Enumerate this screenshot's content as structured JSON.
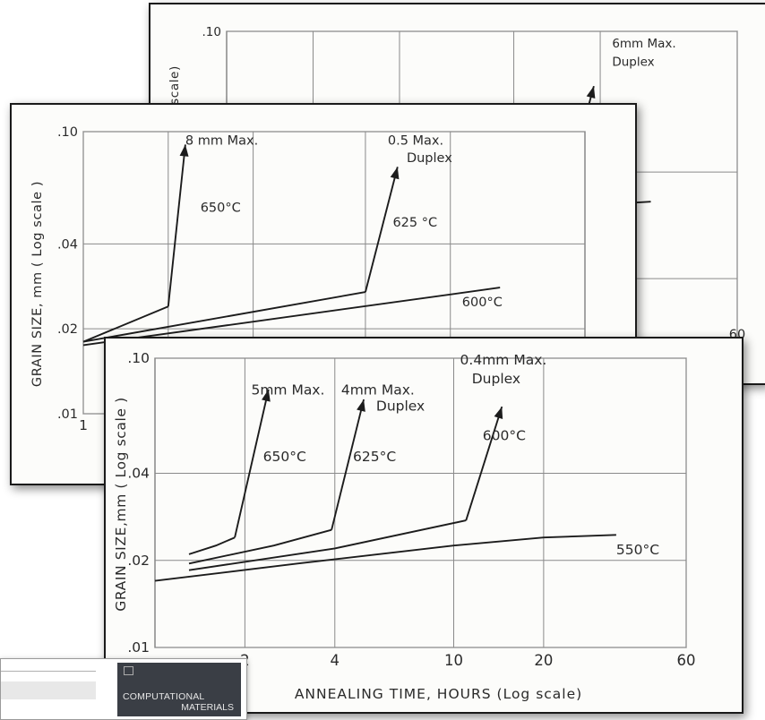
{
  "chart_data": [
    {
      "type": "line",
      "panel": "back (partially hidden)",
      "title": "",
      "ylabel": "scale)",
      "xlabel": "",
      "y_scale": "log",
      "ylim": [
        0.01,
        0.1
      ],
      "xlim": [
        1,
        60
      ],
      "x_scale": "log",
      "ytick_labels": [
        ".10"
      ],
      "xtick_labels": [
        "60"
      ],
      "annotations": [
        {
          "text": "6mm Max.",
          "x": 22,
          "y": 0.09
        },
        {
          "text": "Duplex",
          "x": 22,
          "y": 0.08
        }
      ],
      "series": [
        {
          "x": [
            1,
            30
          ],
          "y": [
            0.028,
            0.033
          ]
        }
      ],
      "arrows": [
        {
          "from": [
            17,
            0.05
          ],
          "to": [
            19,
            0.07
          ]
        }
      ]
    },
    {
      "type": "line",
      "panel": "middle",
      "title": "",
      "ylabel": "GRAIN SIZE, mm ( Log scale )",
      "xlabel": "",
      "y_scale": "log",
      "ylim": [
        0.01,
        0.1
      ],
      "x_scale": "log",
      "xlim": [
        1,
        60
      ],
      "ytick_labels": [
        ".10",
        ".04",
        ".02",
        ".01"
      ],
      "xtick_labels": [
        "1"
      ],
      "annotations": [
        {
          "text": "8 mm Max.",
          "x": 2.3,
          "y": 0.09
        },
        {
          "text": "650°C",
          "x": 2.6,
          "y": 0.052
        },
        {
          "text": "0.5 Max.",
          "x": 12,
          "y": 0.09
        },
        {
          "text": "Duplex",
          "x": 14,
          "y": 0.078
        },
        {
          "text": "625 °C",
          "x": 12.5,
          "y": 0.046
        },
        {
          "text": "600°C",
          "x": 22,
          "y": 0.024
        }
      ],
      "series": [
        {
          "name": "650°C",
          "x": [
            1,
            2
          ],
          "y": [
            0.018,
            0.024
          ]
        },
        {
          "name": "625°C",
          "x": [
            1,
            10
          ],
          "y": [
            0.018,
            0.027
          ]
        },
        {
          "name": "600°C",
          "x": [
            1,
            30
          ],
          "y": [
            0.0175,
            0.028
          ]
        }
      ],
      "arrows": [
        {
          "from": [
            2,
            0.024
          ],
          "to": [
            2.3,
            0.09
          ]
        },
        {
          "from": [
            10,
            0.027
          ],
          "to": [
            13,
            0.075
          ]
        }
      ]
    },
    {
      "type": "line",
      "panel": "front",
      "title": "",
      "xlabel": "ANNEALING TIME, HOURS (Log scale)",
      "ylabel": "GRAIN SIZE,mm ( Log scale )",
      "x_scale": "log",
      "y_scale": "log",
      "xlim": [
        1,
        60
      ],
      "ylim": [
        0.01,
        0.1
      ],
      "xticks": [
        2,
        4,
        10,
        20,
        60
      ],
      "xtick_labels": [
        "2",
        "4",
        "10",
        "20",
        "60"
      ],
      "yticks": [
        0.1,
        0.04,
        0.02,
        0.01
      ],
      "ytick_labels": [
        ".10",
        ".04",
        ".02",
        ".01"
      ],
      "grid": true,
      "annotations": [
        {
          "text": "5mm Max.",
          "x": 2.1,
          "y": 0.075
        },
        {
          "text": "650°C",
          "x": 2.3,
          "y": 0.044
        },
        {
          "text": "4mm Max.",
          "x": 4.2,
          "y": 0.075
        },
        {
          "text": "Duplex",
          "x": 5.5,
          "y": 0.066
        },
        {
          "text": "625°C",
          "x": 4.6,
          "y": 0.044
        },
        {
          "text": "0.4mm Max.",
          "x": 10.5,
          "y": 0.095
        },
        {
          "text": "Duplex",
          "x": 11.5,
          "y": 0.082
        },
        {
          "text": "600°C",
          "x": 12.5,
          "y": 0.052
        },
        {
          "text": "550°C",
          "x": 35,
          "y": 0.021
        }
      ],
      "series": [
        {
          "name": "650°C",
          "x": [
            1.3,
            1.6,
            1.85
          ],
          "y": [
            0.021,
            0.0225,
            0.024
          ]
        },
        {
          "name": "625°C",
          "x": [
            1.3,
            2.5,
            3.9
          ],
          "y": [
            0.0195,
            0.0225,
            0.0255
          ]
        },
        {
          "name": "600°C",
          "x": [
            1.3,
            4,
            11
          ],
          "y": [
            0.0185,
            0.022,
            0.0275
          ]
        },
        {
          "name": "550°C",
          "x": [
            1,
            3,
            10,
            20,
            35
          ],
          "y": [
            0.017,
            0.0195,
            0.0225,
            0.024,
            0.0245
          ]
        }
      ],
      "arrows": [
        {
          "from": [
            1.85,
            0.024
          ],
          "to": [
            2.4,
            0.078
          ]
        },
        {
          "from": [
            3.9,
            0.0255
          ],
          "to": [
            5.0,
            0.072
          ]
        },
        {
          "from": [
            11,
            0.0275
          ],
          "to": [
            14.5,
            0.068
          ]
        }
      ]
    }
  ],
  "journal": {
    "name_line1": "COMPUTATIONAL",
    "name_line2": "MATERIALS"
  }
}
